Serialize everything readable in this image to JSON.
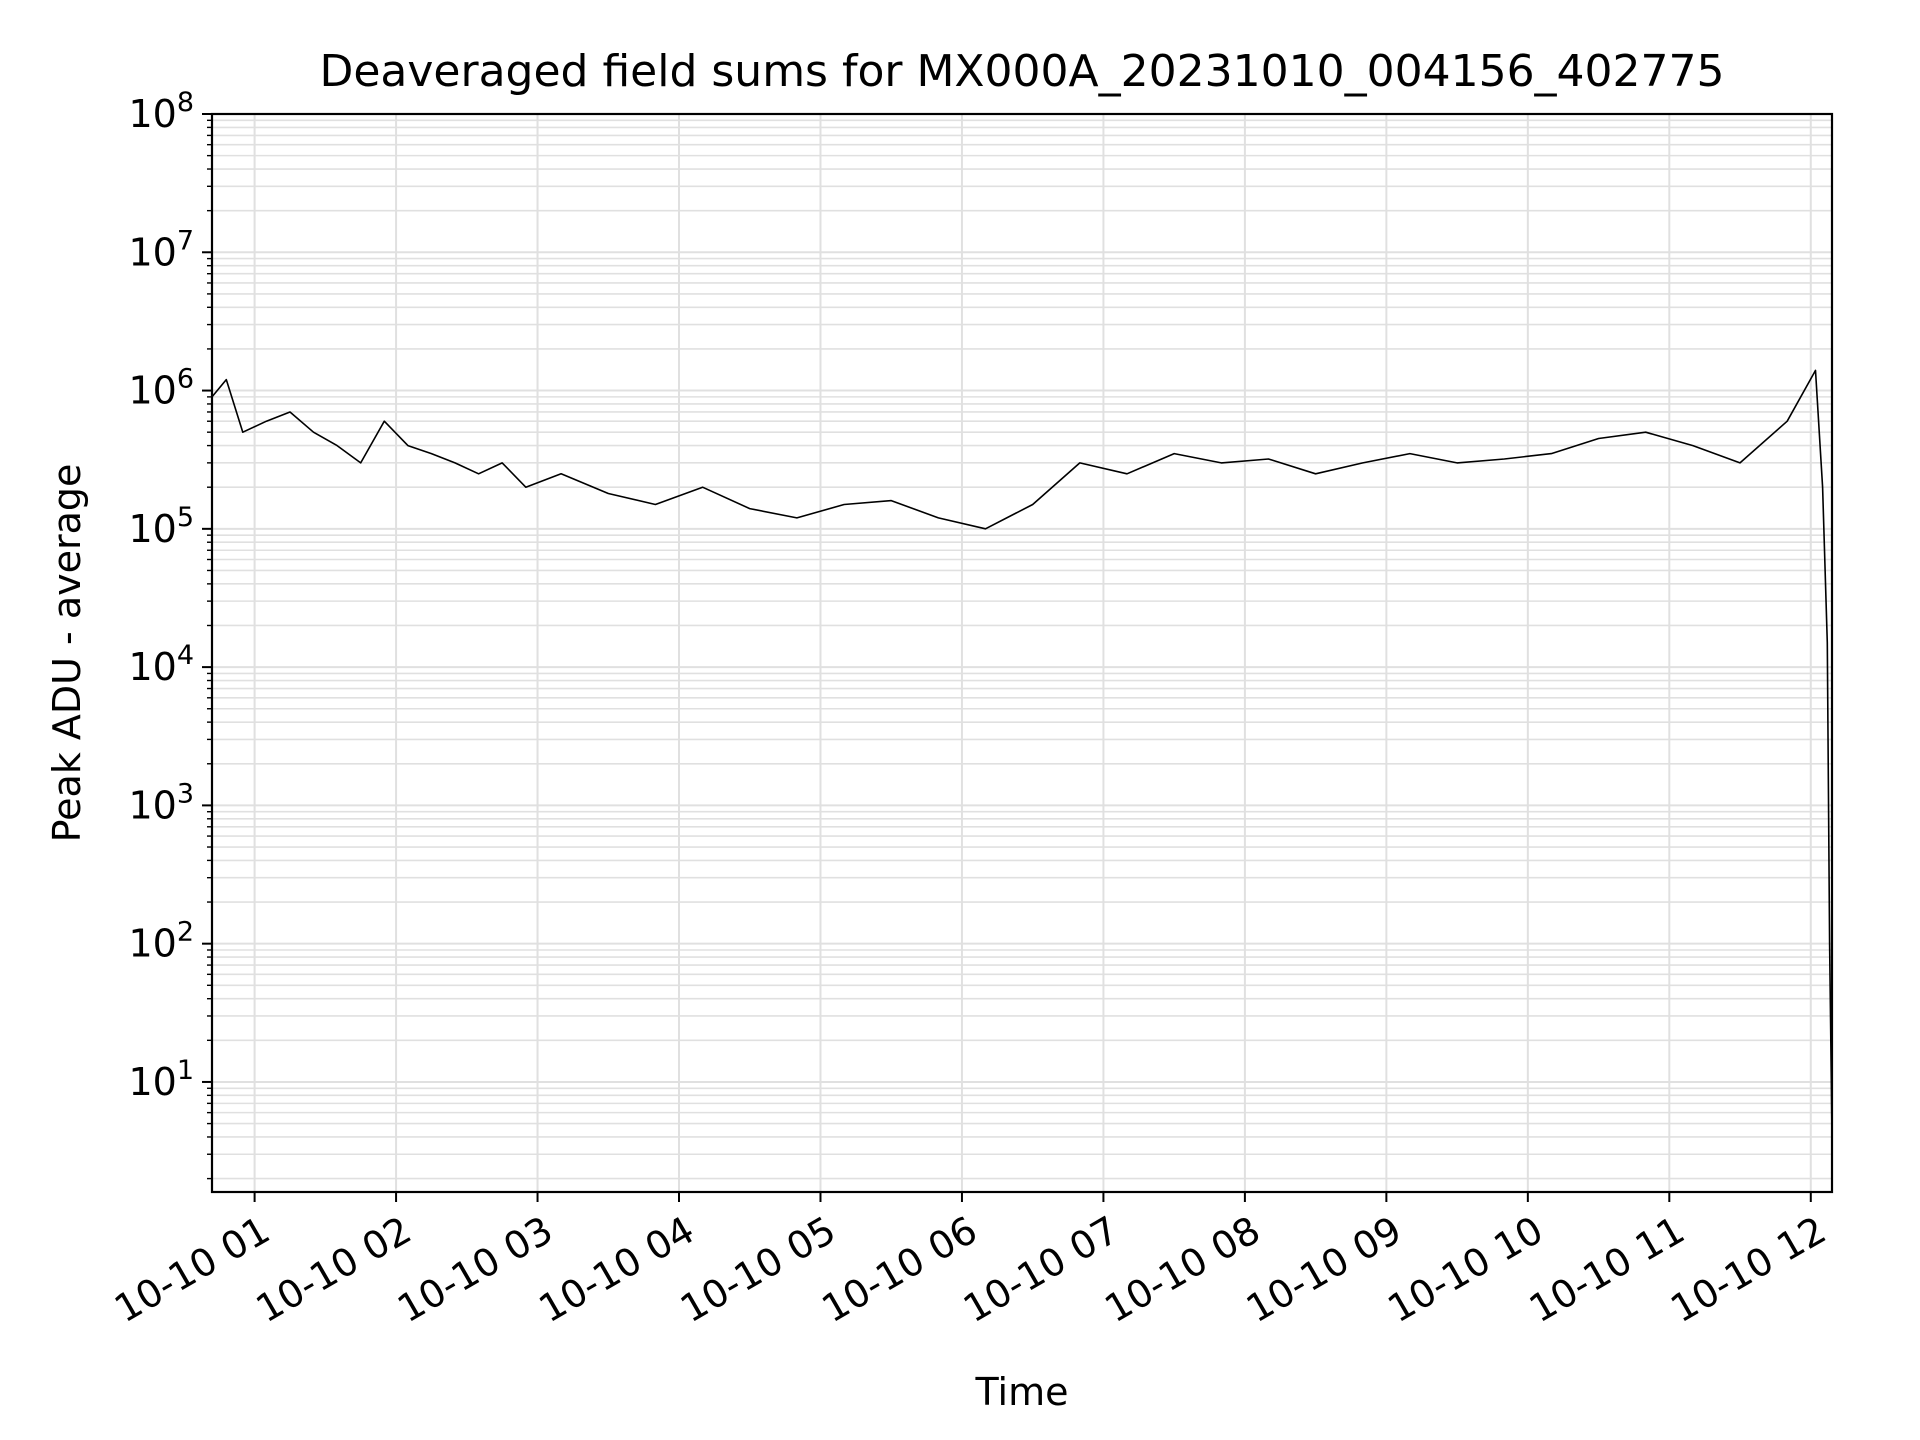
{
  "chart_data": {
    "type": "line",
    "title": "Deaveraged field sums for MX000A_20231010_004156_402775",
    "xlabel": "Time",
    "ylabel": "Peak ADU - average",
    "y_scale": "log",
    "ylim": [
      1.6,
      100000000
    ],
    "xlim": [
      "2023-10-10T00:41:56",
      "2023-10-10T12:09:00"
    ],
    "grid": true,
    "legend": "none",
    "line_color": "#000000",
    "grid_color": "#e0e0e0",
    "x_ticks": [
      {
        "label": "10-10 01",
        "value": "2023-10-10T01:00:00"
      },
      {
        "label": "10-10 02",
        "value": "2023-10-10T02:00:00"
      },
      {
        "label": "10-10 03",
        "value": "2023-10-10T03:00:00"
      },
      {
        "label": "10-10 04",
        "value": "2023-10-10T04:00:00"
      },
      {
        "label": "10-10 05",
        "value": "2023-10-10T05:00:00"
      },
      {
        "label": "10-10 06",
        "value": "2023-10-10T06:00:00"
      },
      {
        "label": "10-10 07",
        "value": "2023-10-10T07:00:00"
      },
      {
        "label": "10-10 08",
        "value": "2023-10-10T08:00:00"
      },
      {
        "label": "10-10 09",
        "value": "2023-10-10T09:00:00"
      },
      {
        "label": "10-10 10",
        "value": "2023-10-10T10:00:00"
      },
      {
        "label": "10-10 11",
        "value": "2023-10-10T11:00:00"
      },
      {
        "label": "10-10 12",
        "value": "2023-10-10T12:00:00"
      }
    ],
    "y_ticks": [
      {
        "base": "10",
        "exp": "1",
        "value": 10
      },
      {
        "base": "10",
        "exp": "2",
        "value": 100
      },
      {
        "base": "10",
        "exp": "3",
        "value": 1000
      },
      {
        "base": "10",
        "exp": "4",
        "value": 10000
      },
      {
        "base": "10",
        "exp": "5",
        "value": 100000
      },
      {
        "base": "10",
        "exp": "6",
        "value": 1000000
      },
      {
        "base": "10",
        "exp": "7",
        "value": 10000000
      },
      {
        "base": "10",
        "exp": "8",
        "value": 100000000
      }
    ],
    "series": [
      {
        "x": [
          "2023-10-10T00:41:56",
          "2023-10-10T00:48:00",
          "2023-10-10T00:55:00",
          "2023-10-10T01:05:00",
          "2023-10-10T01:15:00",
          "2023-10-10T01:25:00",
          "2023-10-10T01:35:00",
          "2023-10-10T01:45:00",
          "2023-10-10T01:55:00",
          "2023-10-10T02:05:00",
          "2023-10-10T02:15:00",
          "2023-10-10T02:25:00",
          "2023-10-10T02:35:00",
          "2023-10-10T02:45:00",
          "2023-10-10T02:55:00",
          "2023-10-10T03:10:00",
          "2023-10-10T03:30:00",
          "2023-10-10T03:50:00",
          "2023-10-10T04:10:00",
          "2023-10-10T04:30:00",
          "2023-10-10T04:50:00",
          "2023-10-10T05:10:00",
          "2023-10-10T05:30:00",
          "2023-10-10T05:50:00",
          "2023-10-10T06:10:00",
          "2023-10-10T06:30:00",
          "2023-10-10T06:50:00",
          "2023-10-10T07:10:00",
          "2023-10-10T07:30:00",
          "2023-10-10T07:50:00",
          "2023-10-10T08:10:00",
          "2023-10-10T08:30:00",
          "2023-10-10T08:50:00",
          "2023-10-10T09:10:00",
          "2023-10-10T09:30:00",
          "2023-10-10T09:50:00",
          "2023-10-10T10:10:00",
          "2023-10-10T10:30:00",
          "2023-10-10T10:50:00",
          "2023-10-10T11:10:00",
          "2023-10-10T11:30:00",
          "2023-10-10T11:50:00",
          "2023-10-10T12:02:00",
          "2023-10-10T12:05:00",
          "2023-10-10T12:07:00",
          "2023-10-10T12:08:00",
          "2023-10-10T12:09:00"
        ],
        "y": [
          900000,
          1200000,
          500000,
          600000,
          700000,
          500000,
          400000,
          300000,
          600000,
          400000,
          350000,
          300000,
          250000,
          300000,
          200000,
          250000,
          180000,
          150000,
          200000,
          140000,
          120000,
          150000,
          160000,
          120000,
          100000,
          150000,
          300000,
          250000,
          350000,
          300000,
          320000,
          250000,
          300000,
          350000,
          300000,
          320000,
          350000,
          450000,
          500000,
          400000,
          300000,
          600000,
          1400000,
          200000,
          15000,
          100,
          4
        ]
      }
    ]
  }
}
